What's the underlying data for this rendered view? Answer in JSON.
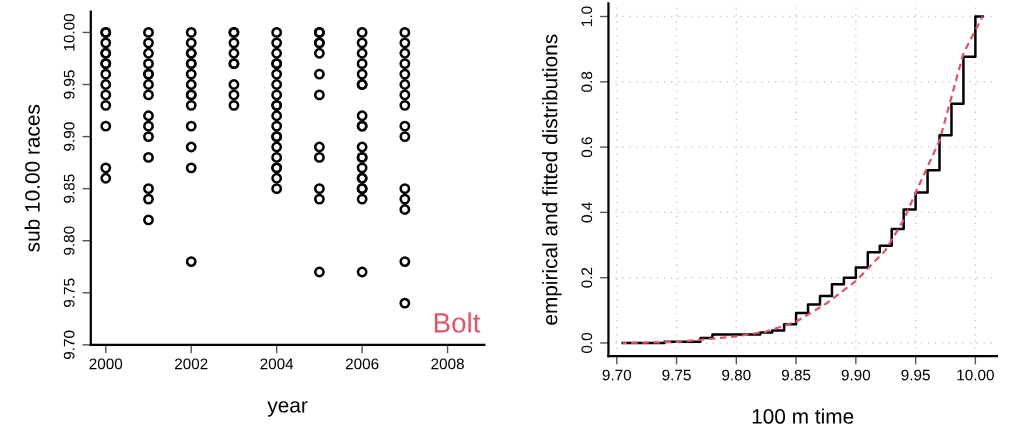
{
  "chart_data": [
    {
      "type": "scatter",
      "xlabel": "year",
      "ylabel": "sub 10.00 races",
      "marker": "circle",
      "grid": false,
      "xlim": [
        1999.65,
        2008.86
      ],
      "ylim": [
        9.7,
        10.02
      ],
      "xticks": [
        2000,
        2002,
        2004,
        2006,
        2008
      ],
      "yticks": [
        {
          "value": 9.7,
          "label": "9.70"
        },
        {
          "value": 9.75,
          "label": "9.75"
        },
        {
          "value": 9.8,
          "label": "9.80"
        },
        {
          "value": 9.85,
          "label": "9.85"
        },
        {
          "value": 9.9,
          "label": "9.90"
        },
        {
          "value": 9.95,
          "label": "9.95"
        },
        {
          "value": 10.0,
          "label": "10.00"
        }
      ],
      "annotations": [
        "Bolt"
      ],
      "series": [
        {
          "color": "#000000",
          "x": [
            2000,
            2000,
            2000,
            2000,
            2000,
            2000,
            2000,
            2000,
            2000,
            2000,
            2000,
            2000,
            2000,
            2000,
            2001,
            2001,
            2001,
            2001,
            2001,
            2001,
            2001,
            2001,
            2001,
            2001,
            2001,
            2001,
            2001,
            2001,
            2001,
            2002,
            2002,
            2002,
            2002,
            2002,
            2002,
            2002,
            2002,
            2002,
            2002,
            2002,
            2002,
            2002,
            2002,
            2002,
            2003,
            2003,
            2003,
            2003,
            2003,
            2003,
            2003,
            2003,
            2003,
            2004,
            2004,
            2004,
            2004,
            2004,
            2004,
            2004,
            2004,
            2004,
            2004,
            2004,
            2004,
            2004,
            2004,
            2004,
            2004,
            2004,
            2004,
            2004,
            2004,
            2005,
            2005,
            2005,
            2005,
            2005,
            2005,
            2005,
            2005,
            2005,
            2005,
            2005,
            2005,
            2006,
            2006,
            2006,
            2006,
            2006,
            2006,
            2006,
            2006,
            2006,
            2006,
            2006,
            2006,
            2006,
            2006,
            2006,
            2006,
            2006,
            2006,
            2006,
            2006,
            2007,
            2007,
            2007,
            2007,
            2007,
            2007,
            2007,
            2007,
            2007,
            2007,
            2007,
            2007,
            2007,
            2007,
            2007
          ],
          "values": [
            10.0,
            10.0,
            9.99,
            9.98,
            9.98,
            9.97,
            9.97,
            9.96,
            9.95,
            9.94,
            9.93,
            9.91,
            9.87,
            9.86,
            10.0,
            9.99,
            9.98,
            9.97,
            9.96,
            9.96,
            9.95,
            9.94,
            9.92,
            9.91,
            9.9,
            9.88,
            9.85,
            9.84,
            9.82,
            10.0,
            9.99,
            9.98,
            9.98,
            9.97,
            9.97,
            9.96,
            9.95,
            9.94,
            9.94,
            9.93,
            9.91,
            9.89,
            9.87,
            9.78,
            10.0,
            10.0,
            9.99,
            9.98,
            9.97,
            9.97,
            9.95,
            9.94,
            9.93,
            10.0,
            9.99,
            9.98,
            9.97,
            9.97,
            9.96,
            9.95,
            9.94,
            9.93,
            9.93,
            9.92,
            9.91,
            9.9,
            9.9,
            9.89,
            9.88,
            9.87,
            9.87,
            9.86,
            9.85,
            10.0,
            10.0,
            9.99,
            9.99,
            9.98,
            9.96,
            9.94,
            9.89,
            9.88,
            9.85,
            9.84,
            9.77,
            10.0,
            9.99,
            9.98,
            9.97,
            9.96,
            9.95,
            9.95,
            9.92,
            9.91,
            9.91,
            9.89,
            9.88,
            9.88,
            9.87,
            9.86,
            9.86,
            9.85,
            9.85,
            9.84,
            9.77,
            10.0,
            9.99,
            9.98,
            9.97,
            9.96,
            9.95,
            9.94,
            9.93,
            9.91,
            9.9,
            9.85,
            9.84,
            9.83,
            9.78,
            9.74
          ]
        }
      ]
    },
    {
      "type": "line",
      "xlabel": "100 m time",
      "ylabel": "empirical and fitted distributions",
      "grid": true,
      "xlim": [
        9.693,
        10.018
      ],
      "ylim": [
        -0.04,
        1.04
      ],
      "xticks": [
        {
          "value": 9.7,
          "label": "9.70"
        },
        {
          "value": 9.75,
          "label": "9.75"
        },
        {
          "value": 9.8,
          "label": "9.80"
        },
        {
          "value": 9.85,
          "label": "9.85"
        },
        {
          "value": 9.9,
          "label": "9.90"
        },
        {
          "value": 9.95,
          "label": "9.95"
        },
        {
          "value": 10.0,
          "label": "10.00"
        }
      ],
      "yticks": [
        {
          "value": 0,
          "label": "0.0"
        },
        {
          "value": 0.2,
          "label": "0.2"
        },
        {
          "value": 0.4,
          "label": "0.4"
        },
        {
          "value": 0.6,
          "label": "0.6"
        },
        {
          "value": 0.8,
          "label": "0.8"
        },
        {
          "value": 1.0,
          "label": "1.0"
        }
      ],
      "series": [
        {
          "type": "step",
          "color": "#000000",
          "line_style": "solid",
          "x": [
            9.705,
            9.74,
            9.77,
            9.78,
            9.82,
            9.83,
            9.84,
            9.85,
            9.86,
            9.87,
            9.88,
            9.89,
            9.9,
            9.91,
            9.92,
            9.93,
            9.94,
            9.95,
            9.96,
            9.97,
            9.98,
            9.99,
            10.0,
            10.006
          ],
          "values": [
            0,
            0.004,
            0.015,
            0.026,
            0.032,
            0.038,
            0.057,
            0.092,
            0.118,
            0.144,
            0.18,
            0.2,
            0.231,
            0.278,
            0.298,
            0.349,
            0.409,
            0.461,
            0.529,
            0.636,
            0.733,
            0.877,
            1.0,
            1.0
          ]
        },
        {
          "type": "line",
          "color": "#df536b",
          "line_style": "dashed",
          "x": [
            9.705,
            9.75,
            9.8,
            9.825,
            9.85,
            9.875,
            9.9,
            9.925,
            9.94,
            9.95,
            9.97,
            9.99,
            10.006
          ],
          "values": [
            0,
            0.003,
            0.02,
            0.035,
            0.065,
            0.12,
            0.19,
            0.285,
            0.377,
            0.46,
            0.62,
            0.887,
            1.0
          ]
        }
      ]
    }
  ]
}
